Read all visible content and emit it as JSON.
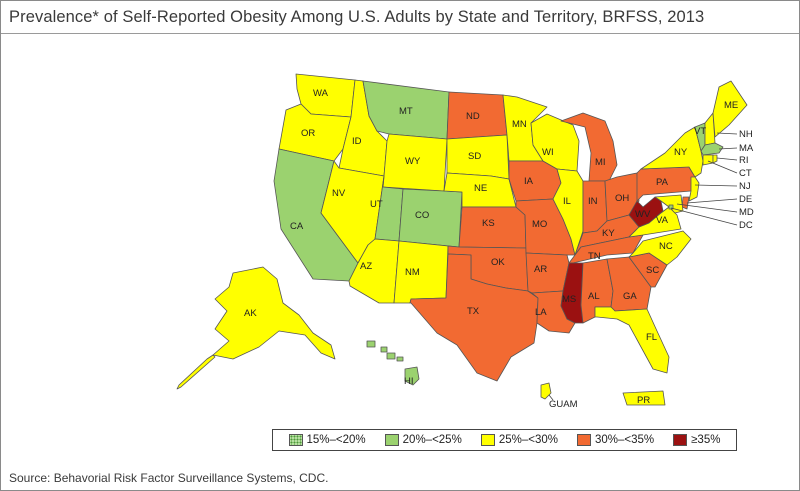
{
  "title": "Prevalence* of Self-Reported Obesity Among U.S. Adults by State and Territory, BRFSS, 2013",
  "source": "Source: Behavorial Risk Factor Surveillance Systems, CDC.",
  "colors": {
    "lt20": "#b6e0a0",
    "c20_25": "#9bd26f",
    "c25_30": "#ffff00",
    "c30_35": "#f26a32",
    "ge35": "#9b1111"
  },
  "legend": [
    {
      "label": "15%–<20%",
      "color_key": "lt20",
      "pattern": "dotted"
    },
    {
      "label": "20%–<25%",
      "color_key": "c20_25"
    },
    {
      "label": "25%–<30%",
      "color_key": "c25_30"
    },
    {
      "label": "30%–<35%",
      "color_key": "c30_35"
    },
    {
      "label": "≥35%",
      "color_key": "ge35"
    }
  ],
  "states": {
    "WA": {
      "label": "WA",
      "category": "c25_30"
    },
    "OR": {
      "label": "OR",
      "category": "c25_30"
    },
    "CA": {
      "label": "CA",
      "category": "c20_25"
    },
    "ID": {
      "label": "ID",
      "category": "c25_30"
    },
    "NV": {
      "label": "NV",
      "category": "c25_30"
    },
    "MT": {
      "label": "MT",
      "category": "c20_25"
    },
    "WY": {
      "label": "WY",
      "category": "c25_30"
    },
    "UT": {
      "label": "UT",
      "category": "c20_25"
    },
    "CO": {
      "label": "CO",
      "category": "c20_25"
    },
    "AZ": {
      "label": "AZ",
      "category": "c25_30"
    },
    "NM": {
      "label": "NM",
      "category": "c25_30"
    },
    "ND": {
      "label": "ND",
      "category": "c30_35"
    },
    "SD": {
      "label": "SD",
      "category": "c25_30"
    },
    "NE": {
      "label": "NE",
      "category": "c25_30"
    },
    "KS": {
      "label": "KS",
      "category": "c30_35"
    },
    "OK": {
      "label": "OK",
      "category": "c30_35"
    },
    "TX": {
      "label": "TX",
      "category": "c30_35"
    },
    "MN": {
      "label": "MN",
      "category": "c25_30"
    },
    "IA": {
      "label": "IA",
      "category": "c30_35"
    },
    "MO": {
      "label": "MO",
      "category": "c30_35"
    },
    "AR": {
      "label": "AR",
      "category": "c30_35"
    },
    "LA": {
      "label": "LA",
      "category": "c30_35"
    },
    "WI": {
      "label": "WI",
      "category": "c25_30"
    },
    "IL": {
      "label": "IL",
      "category": "c25_30"
    },
    "MI": {
      "label": "MI",
      "category": "c30_35"
    },
    "IN": {
      "label": "IN",
      "category": "c30_35"
    },
    "OH": {
      "label": "OH",
      "category": "c30_35"
    },
    "KY": {
      "label": "KY",
      "category": "c30_35"
    },
    "TN": {
      "label": "TN",
      "category": "c30_35"
    },
    "MS": {
      "label": "MS",
      "category": "ge35"
    },
    "AL": {
      "label": "AL",
      "category": "c30_35"
    },
    "GA": {
      "label": "GA",
      "category": "c30_35"
    },
    "FL": {
      "label": "FL",
      "category": "c25_30"
    },
    "SC": {
      "label": "SC",
      "category": "c30_35"
    },
    "NC": {
      "label": "NC",
      "category": "c25_30"
    },
    "VA": {
      "label": "VA",
      "category": "c25_30"
    },
    "WV": {
      "label": "WV",
      "category": "ge35"
    },
    "PA": {
      "label": "PA",
      "category": "c30_35"
    },
    "NY": {
      "label": "NY",
      "category": "c25_30"
    },
    "VT": {
      "label": "VT",
      "category": "c20_25"
    },
    "NH": {
      "label": "NH",
      "category": "c25_30"
    },
    "ME": {
      "label": "ME",
      "category": "c25_30"
    },
    "MA": {
      "label": "MA",
      "category": "c20_25"
    },
    "RI": {
      "label": "RI",
      "category": "c25_30"
    },
    "CT": {
      "label": "CT",
      "category": "c25_30"
    },
    "NJ": {
      "label": "NJ",
      "category": "c25_30"
    },
    "DE": {
      "label": "DE",
      "category": "c30_35"
    },
    "MD": {
      "label": "MD",
      "category": "c25_30"
    },
    "DC": {
      "label": "DC",
      "category": "c20_25"
    },
    "AK": {
      "label": "AK",
      "category": "c25_30"
    },
    "HI": {
      "label": "HI",
      "category": "c20_25"
    },
    "GUAM": {
      "label": "GUAM",
      "category": "c25_30"
    },
    "PR": {
      "label": "PR",
      "category": "c25_30"
    }
  }
}
